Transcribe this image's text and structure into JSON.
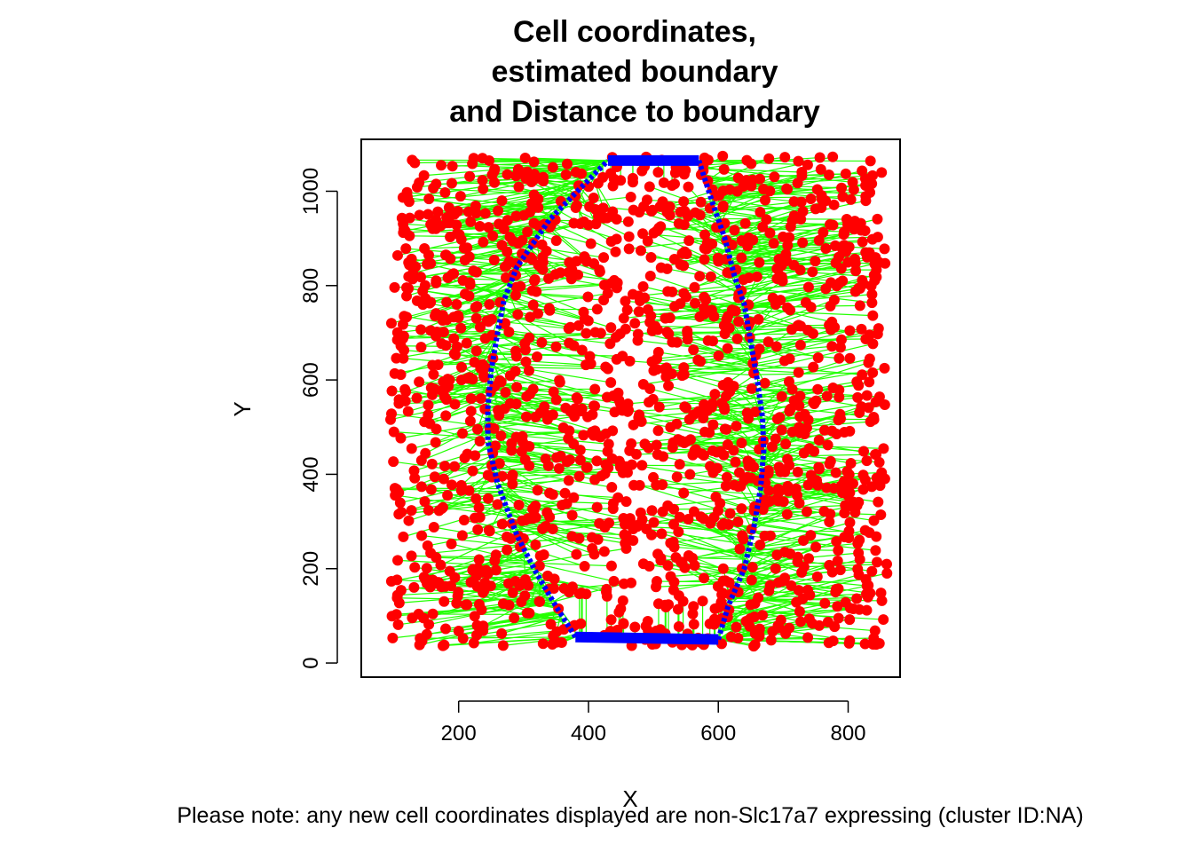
{
  "chart_data": {
    "type": "scatter",
    "title_lines": [
      "Cell coordinates,",
      "estimated boundary",
      "and Distance to boundary"
    ],
    "xlabel": "X",
    "ylabel": "Y",
    "xlim": [
      50,
      880
    ],
    "ylim": [
      -30,
      1110
    ],
    "x_ticks": [
      200,
      400,
      600,
      800
    ],
    "y_ticks": [
      0,
      200,
      400,
      600,
      800,
      1000
    ],
    "grid": false,
    "colors": {
      "cells": "#ff0000",
      "boundary": "#0000ff",
      "distance_lines": "#22ff00",
      "axis": "#000000"
    },
    "boundary_left": [
      [
        380,
        55
      ],
      [
        350,
        120
      ],
      [
        320,
        190
      ],
      [
        290,
        270
      ],
      [
        260,
        380
      ],
      [
        245,
        470
      ],
      [
        245,
        540
      ],
      [
        250,
        620
      ],
      [
        260,
        700
      ],
      [
        270,
        770
      ],
      [
        290,
        840
      ],
      [
        340,
        940
      ],
      [
        390,
        1010
      ],
      [
        430,
        1065
      ]
    ],
    "boundary_right": [
      [
        600,
        50
      ],
      [
        615,
        120
      ],
      [
        640,
        200
      ],
      [
        655,
        290
      ],
      [
        665,
        370
      ],
      [
        670,
        450
      ],
      [
        668,
        520
      ],
      [
        660,
        600
      ],
      [
        650,
        680
      ],
      [
        640,
        760
      ],
      [
        625,
        820
      ],
      [
        610,
        900
      ],
      [
        590,
        980
      ],
      [
        570,
        1065
      ]
    ],
    "boundary_top": [
      [
        430,
        1065
      ],
      [
        570,
        1065
      ]
    ],
    "boundary_bottom": [
      [
        380,
        55
      ],
      [
        600,
        50
      ]
    ],
    "cell_x_range": [
      95,
      860
    ],
    "cell_y_range": [
      35,
      1075
    ],
    "cell_count": 1600
  },
  "footnote": "Please note: any new cell coordinates displayed are non-Slc17a7 expressing (cluster ID:NA)"
}
